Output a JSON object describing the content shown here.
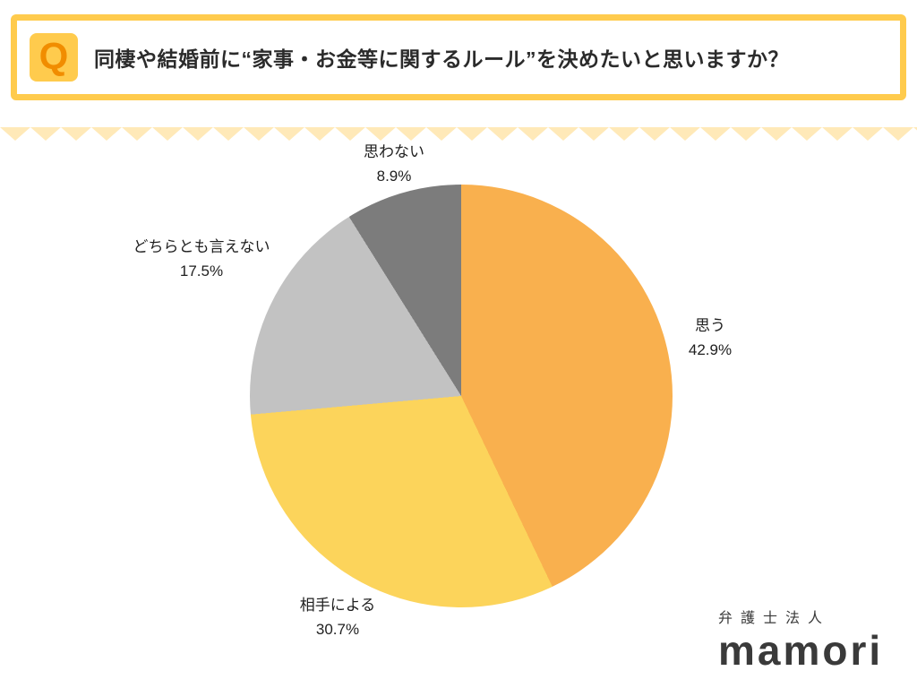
{
  "header": {
    "q_mark": "Q",
    "title": "同棲や結婚前に“家事・お金等に関するルール”を決めたいと思いますか？"
  },
  "chart_data": {
    "type": "pie",
    "direction": "clockwise",
    "start_angle_deg": 0,
    "slices": [
      {
        "label": "思う",
        "value": 42.9,
        "pct_text": "42.9%",
        "color": "#F9B04E"
      },
      {
        "label": "相手による",
        "value": 30.7,
        "pct_text": "30.7%",
        "color": "#FCD45B"
      },
      {
        "label": "どちらとも言えない",
        "value": 17.5,
        "pct_text": "17.5%",
        "color": "#C2C2C2"
      },
      {
        "label": "思わない",
        "value": 8.9,
        "pct_text": "8.9%",
        "color": "#7C7C7C"
      }
    ]
  },
  "logo": {
    "company": "弁護士法人",
    "brand": "mamori"
  },
  "theme": {
    "frame_yellow": "#FFCB4D",
    "q_orange": "#F18D00",
    "zigzag": "#FFE9B8",
    "text_dark": "#2B2B2B"
  }
}
